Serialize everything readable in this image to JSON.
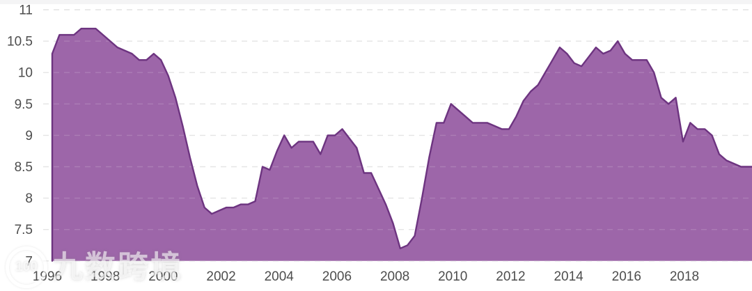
{
  "page": {
    "background": "#ffffff",
    "top_strip_color": "#f4f4f5"
  },
  "watermark": {
    "logo_number": "100",
    "text": "九数跨境"
  },
  "chart_data": {
    "type": "area",
    "title": "",
    "xlabel": "",
    "ylabel": "",
    "frequency": "quarterly",
    "x_start": "1996-Q1",
    "x_end": "2020-Q2",
    "values": [
      10.3,
      10.6,
      10.6,
      10.6,
      10.7,
      10.7,
      10.7,
      10.6,
      10.5,
      10.4,
      10.35,
      10.3,
      10.2,
      10.2,
      10.3,
      10.2,
      9.95,
      9.6,
      9.15,
      8.65,
      8.2,
      7.85,
      7.75,
      7.8,
      7.85,
      7.85,
      7.9,
      7.9,
      7.95,
      8.5,
      8.45,
      8.75,
      9.0,
      8.8,
      8.9,
      8.9,
      8.9,
      8.7,
      9.0,
      9.0,
      9.1,
      8.95,
      8.8,
      8.4,
      8.4,
      8.15,
      7.9,
      7.6,
      7.2,
      7.25,
      7.4,
      8.0,
      8.65,
      9.2,
      9.2,
      9.5,
      9.4,
      9.3,
      9.2,
      9.2,
      9.2,
      9.15,
      9.1,
      9.1,
      9.3,
      9.55,
      9.7,
      9.8,
      10.0,
      10.2,
      10.4,
      10.3,
      10.15,
      10.1,
      10.25,
      10.4,
      10.3,
      10.35,
      10.5,
      10.3,
      10.2,
      10.2,
      10.2,
      10.0,
      9.6,
      9.5,
      9.6,
      8.9,
      9.2,
      9.1,
      9.1,
      9.0,
      8.7,
      8.6,
      8.55,
      8.5,
      8.5,
      8.5
    ],
    "ylim": [
      7,
      11
    ],
    "y_tick_labels": [
      "11",
      "10.5",
      "10",
      "9.5",
      "9",
      "8.5",
      "8",
      "7.5",
      "7"
    ],
    "y_tick_values": [
      11,
      10.5,
      10,
      9.5,
      9,
      8.5,
      8,
      7.5,
      7
    ],
    "x_tick_labels": [
      "1996",
      "1998",
      "2000",
      "2002",
      "2004",
      "2006",
      "2008",
      "2010",
      "2012",
      "2014",
      "2016",
      "2018"
    ],
    "x_tick_years": [
      1996,
      1998,
      2000,
      2002,
      2004,
      2006,
      2008,
      2010,
      2012,
      2014,
      2016,
      2018
    ],
    "grid": "horizontal-dashed",
    "legend": "none",
    "colors": {
      "fill": "#9a61a6",
      "line": "#6d3480",
      "grid": "#e0e0e0",
      "tick_text": "#4d4d4d"
    }
  }
}
